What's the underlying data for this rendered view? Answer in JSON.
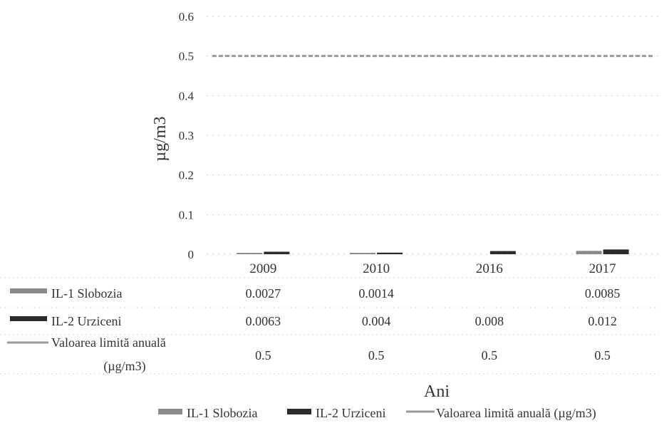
{
  "chart_data": {
    "type": "bar",
    "categories": [
      "2009",
      "2010",
      "2016",
      "2017"
    ],
    "xlabel": "Ani",
    "ylabel": "µg/m3",
    "ylim": [
      0,
      0.6
    ],
    "yticks": [
      "0",
      "0.1",
      "0.2",
      "0.3",
      "0.4",
      "0.5",
      "0.6"
    ],
    "grid": true,
    "legend_position": "bottom",
    "series": [
      {
        "name": "IL-1 Slobozia",
        "kind": "bar",
        "color": "#8a8a8a",
        "values": [
          0.0027,
          0.0014,
          null,
          0.0085
        ],
        "labels": [
          "0.0027",
          "0.0014",
          "",
          "0.0085"
        ]
      },
      {
        "name": "IL-2 Urziceni",
        "kind": "bar",
        "color": "#2b2b2b",
        "values": [
          0.0063,
          0.004,
          0.008,
          0.012
        ],
        "labels": [
          "0.0063",
          "0.004",
          "0.008",
          "0.012"
        ]
      },
      {
        "name": "Valoarea limită anuală (µg/m3)",
        "kind": "line",
        "color": "#9a9a9a",
        "values": [
          0.5,
          0.5,
          0.5,
          0.5
        ],
        "labels": [
          "0.5",
          "0.5",
          "0.5",
          "0.5"
        ]
      }
    ],
    "table_row_labels": [
      "IL-1 Slobozia",
      "IL-2 Urziceni",
      "Valoarea limită anuală",
      "(µg/m3)"
    ],
    "legend_labels": [
      "IL-1 Slobozia",
      "IL-2 Urziceni",
      "Valoarea limită anuală (µg/m3)"
    ]
  }
}
